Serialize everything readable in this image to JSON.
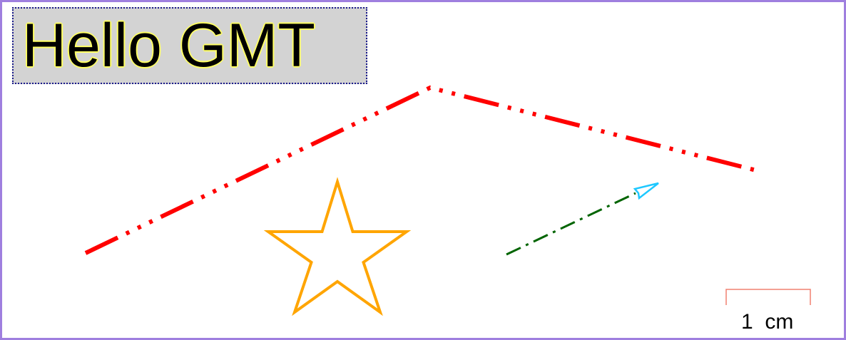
{
  "title": "Hello GMT",
  "scale_bar": {
    "label": "1  cm"
  },
  "colors": {
    "frame": "#9f7fdf",
    "title_box_fill": "#d3d3d3",
    "title_box_border": "#1a1a8c",
    "title_glow": "#ffff66",
    "polyline": "#ff0000",
    "star": "#ffa500",
    "vector_line": "#006400",
    "vector_head": "#1ec8ff",
    "scale_bar": "#f08070"
  }
}
